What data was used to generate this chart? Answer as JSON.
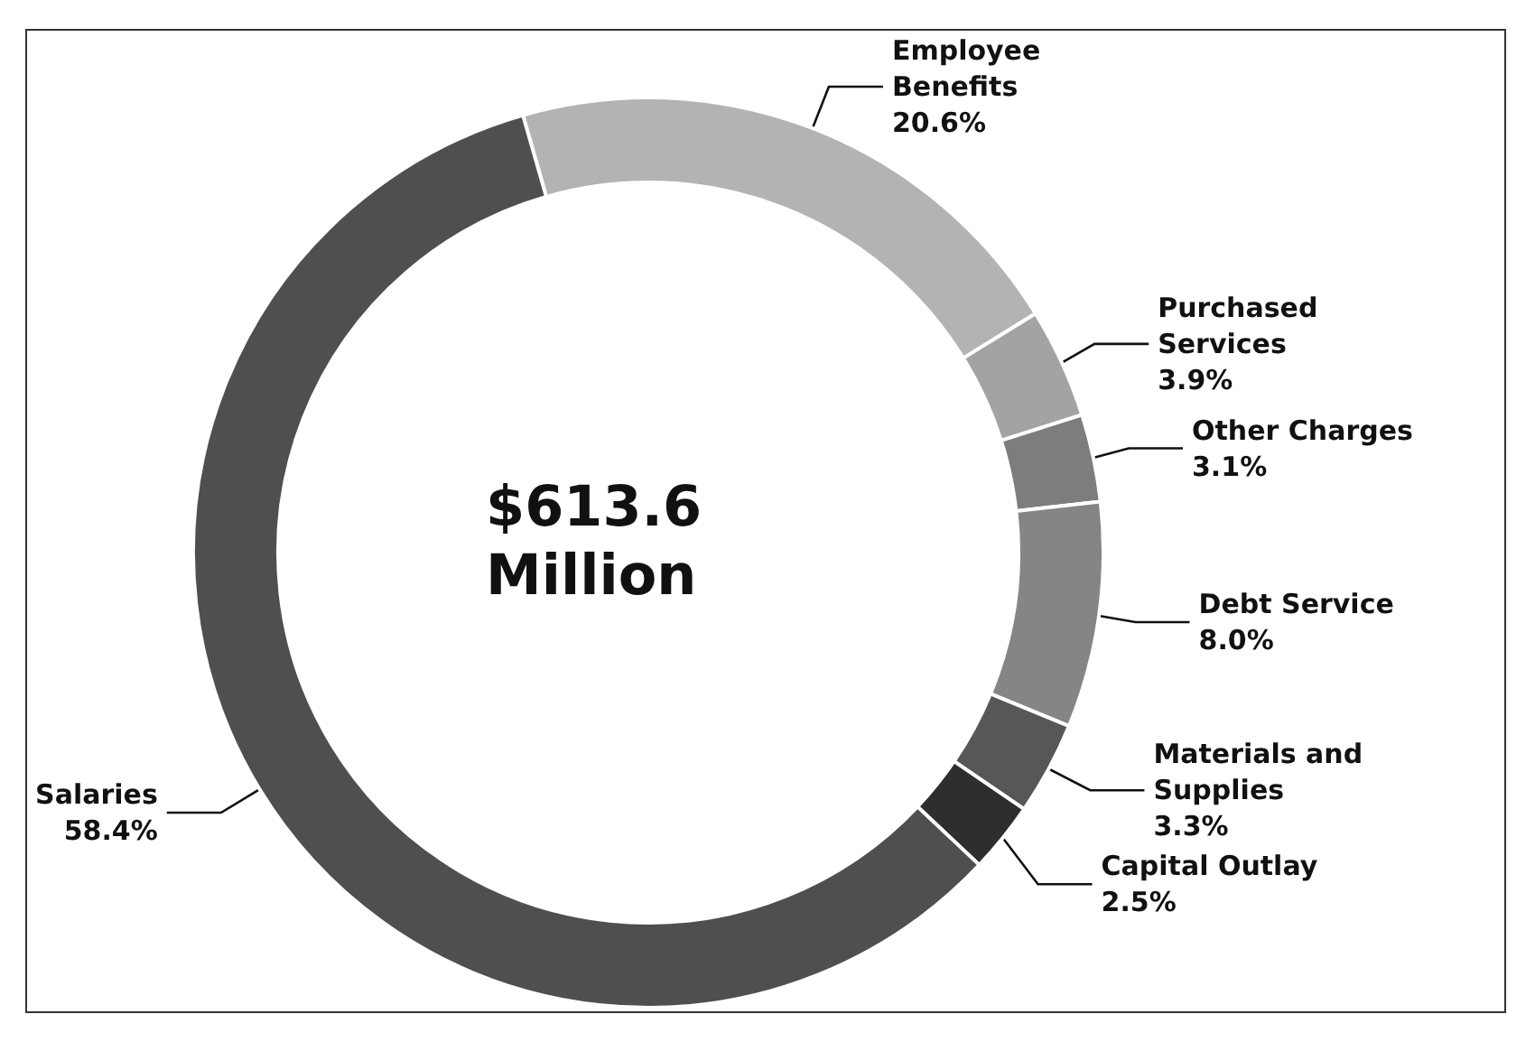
{
  "chart_data": {
    "type": "donut",
    "categories": [
      "Employee Benefits",
      "Purchased Services",
      "Other Charges",
      "Debt Service",
      "Materials and Supplies",
      "Capital Outlay",
      "Salaries"
    ],
    "values": [
      20.6,
      3.9,
      3.1,
      8.0,
      3.3,
      2.5,
      58.4
    ],
    "value_labels": [
      "20.6%",
      "3.9%",
      "3.1%",
      "8.0%",
      "3.3%",
      "2.5%",
      "58.4%"
    ],
    "colors": [
      "#b3b3b3",
      "#a3a3a3",
      "#7d7d7d",
      "#858585",
      "#575757",
      "#2e2e2e",
      "#4f4f4f"
    ],
    "annotations": [
      "$613.6 Million"
    ],
    "legend": false
  }
}
